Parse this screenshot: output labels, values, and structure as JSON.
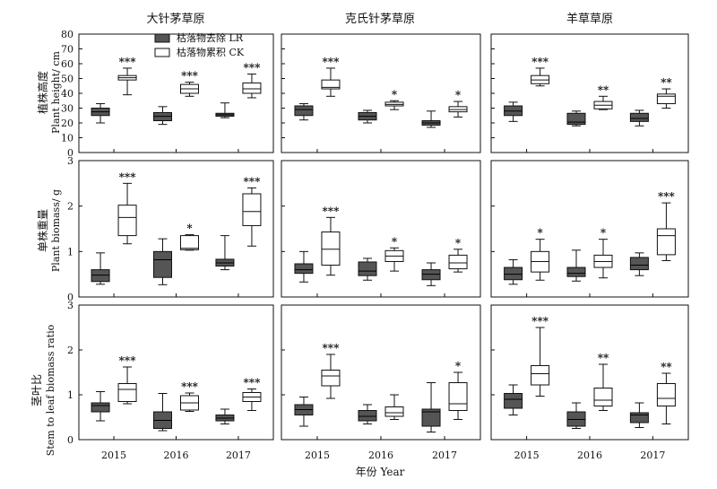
{
  "figure": {
    "xlabel": "年份 Year",
    "years": [
      "2015",
      "2016",
      "2017"
    ],
    "columns": [
      "大针茅草原",
      "克氏针茅草原",
      "羊草草原"
    ],
    "legend": [
      {
        "label": "枯落物去除 LR",
        "color": "#555555"
      },
      {
        "label": "枯落物累积 CK",
        "color": "#ffffff"
      }
    ],
    "colors": {
      "LR": "#555555",
      "CK": "#ffffff",
      "stroke": "#111111"
    }
  },
  "chart_data": [
    {
      "type": "box",
      "row": 0,
      "col": 0,
      "ylabel_cn": "植株高度",
      "ylabel_en": "Plant height/ cm",
      "ylim": [
        0,
        80
      ],
      "yticks": [
        0,
        10,
        20,
        30,
        40,
        50,
        60,
        70,
        80
      ],
      "categories": [
        "2015",
        "2016",
        "2017"
      ],
      "series": [
        {
          "key": "LR",
          "boxes": [
            [
              20,
              25,
              27.5,
              30,
              33
            ],
            [
              19,
              21.5,
              24.5,
              27,
              31
            ],
            [
              23.5,
              24.5,
              25.5,
              26.5,
              33.5
            ]
          ]
        },
        {
          "key": "CK",
          "boxes": [
            [
              39,
              49,
              50.5,
              52,
              57
            ],
            [
              38,
              40,
              43,
              46,
              47.5
            ],
            [
              37,
              40,
              43,
              47,
              53
            ]
          ]
        }
      ],
      "annotations": [
        "***",
        "***",
        "***"
      ]
    },
    {
      "type": "box",
      "row": 0,
      "col": 1,
      "ylim": [
        0,
        80
      ],
      "yticks": [
        0,
        10,
        20,
        30,
        40,
        50,
        60,
        70,
        80
      ],
      "categories": [
        "2015",
        "2016",
        "2017"
      ],
      "series": [
        {
          "key": "LR",
          "boxes": [
            [
              22,
              25,
              29,
              31.5,
              33
            ],
            [
              20,
              22,
              24.5,
              27,
              28.5
            ],
            [
              17,
              18.5,
              20,
              21.5,
              28
            ]
          ]
        },
        {
          "key": "CK",
          "boxes": [
            [
              38,
              43,
              44,
              49,
              57
            ],
            [
              29,
              31.5,
              32.5,
              34,
              35
            ],
            [
              24,
              27.5,
              29,
              31,
              34.5
            ]
          ]
        }
      ],
      "annotations": [
        "***",
        "*",
        "*"
      ]
    },
    {
      "type": "box",
      "row": 0,
      "col": 2,
      "ylim": [
        0,
        80
      ],
      "yticks": [
        0,
        10,
        20,
        30,
        40,
        50,
        60,
        70,
        80
      ],
      "categories": [
        "2015",
        "2016",
        "2017"
      ],
      "series": [
        {
          "key": "LR",
          "boxes": [
            [
              21,
              25,
              28,
              31.5,
              34
            ],
            [
              18,
              19,
              20.5,
              26.5,
              28
            ],
            [
              18,
              21,
              23,
              26.5,
              28.5
            ]
          ]
        },
        {
          "key": "CK",
          "boxes": [
            [
              45,
              46.5,
              49,
              52,
              57
            ],
            [
              29,
              29.5,
              32,
              34.5,
              38
            ],
            [
              30,
              33,
              38,
              39.5,
              43
            ]
          ]
        }
      ],
      "annotations": [
        "***",
        "**",
        "**"
      ]
    },
    {
      "type": "box",
      "row": 1,
      "col": 0,
      "ylabel_cn": "单株重量",
      "ylabel_en": "Plant biomass/ g",
      "ylim": [
        0,
        3
      ],
      "yticks": [
        0,
        1,
        2,
        3
      ],
      "categories": [
        "2015",
        "2016",
        "2017"
      ],
      "series": [
        {
          "key": "LR",
          "boxes": [
            [
              0.28,
              0.34,
              0.48,
              0.6,
              0.97
            ],
            [
              0.27,
              0.43,
              0.82,
              1.0,
              1.28
            ],
            [
              0.6,
              0.68,
              0.75,
              0.83,
              1.35
            ]
          ]
        },
        {
          "key": "CK",
          "boxes": [
            [
              1.17,
              1.35,
              1.75,
              2.02,
              2.5
            ],
            [
              1.03,
              1.04,
              1.07,
              1.35,
              1.37
            ],
            [
              1.12,
              1.57,
              1.88,
              2.27,
              2.4
            ]
          ]
        }
      ],
      "annotations": [
        "***",
        "*",
        "***"
      ]
    },
    {
      "type": "box",
      "row": 1,
      "col": 1,
      "ylim": [
        0,
        3
      ],
      "yticks": [
        0,
        1,
        2,
        3
      ],
      "categories": [
        "2015",
        "2016",
        "2017"
      ],
      "series": [
        {
          "key": "LR",
          "boxes": [
            [
              0.33,
              0.52,
              0.6,
              0.73,
              1.0
            ],
            [
              0.37,
              0.47,
              0.57,
              0.77,
              0.85
            ],
            [
              0.25,
              0.38,
              0.5,
              0.6,
              0.75
            ]
          ]
        },
        {
          "key": "CK",
          "boxes": [
            [
              0.48,
              0.7,
              1.05,
              1.43,
              1.75
            ],
            [
              0.57,
              0.78,
              0.9,
              1.02,
              1.08
            ],
            [
              0.55,
              0.62,
              0.75,
              0.92,
              1.05
            ]
          ]
        }
      ],
      "annotations": [
        "***",
        "*",
        "*"
      ]
    },
    {
      "type": "box",
      "row": 1,
      "col": 2,
      "ylim": [
        0,
        3
      ],
      "yticks": [
        0,
        1,
        2,
        3
      ],
      "categories": [
        "2015",
        "2016",
        "2017"
      ],
      "series": [
        {
          "key": "LR",
          "boxes": [
            [
              0.28,
              0.38,
              0.5,
              0.65,
              0.82
            ],
            [
              0.35,
              0.45,
              0.52,
              0.65,
              1.03
            ],
            [
              0.47,
              0.6,
              0.7,
              0.87,
              0.97
            ]
          ]
        },
        {
          "key": "CK",
          "boxes": [
            [
              0.37,
              0.55,
              0.78,
              1.0,
              1.27
            ],
            [
              0.42,
              0.65,
              0.78,
              0.92,
              1.27
            ],
            [
              0.8,
              0.93,
              1.35,
              1.5,
              2.07
            ]
          ]
        }
      ],
      "annotations": [
        "*",
        "*",
        "***"
      ]
    },
    {
      "type": "box",
      "row": 2,
      "col": 0,
      "ylabel_cn": "茎叶比",
      "ylabel_en": "Stem to leaf biomass ratio",
      "ylim": [
        0,
        3
      ],
      "yticks": [
        0,
        1,
        2,
        3
      ],
      "categories": [
        "2015",
        "2016",
        "2017"
      ],
      "series": [
        {
          "key": "LR",
          "boxes": [
            [
              0.42,
              0.62,
              0.76,
              0.82,
              1.07
            ],
            [
              0.2,
              0.25,
              0.43,
              0.62,
              1.03
            ],
            [
              0.35,
              0.42,
              0.48,
              0.55,
              0.68
            ]
          ]
        },
        {
          "key": "CK",
          "boxes": [
            [
              0.8,
              0.85,
              1.12,
              1.25,
              1.62
            ],
            [
              0.63,
              0.66,
              0.82,
              0.98,
              1.04
            ],
            [
              0.65,
              0.85,
              0.95,
              1.05,
              1.13
            ]
          ]
        }
      ],
      "annotations": [
        "***",
        "***",
        "***"
      ]
    },
    {
      "type": "box",
      "row": 2,
      "col": 1,
      "ylim": [
        0,
        3
      ],
      "yticks": [
        0,
        1,
        2,
        3
      ],
      "categories": [
        "2015",
        "2016",
        "2017"
      ],
      "series": [
        {
          "key": "LR",
          "boxes": [
            [
              0.3,
              0.55,
              0.67,
              0.78,
              0.95
            ],
            [
              0.35,
              0.42,
              0.52,
              0.65,
              0.78
            ],
            [
              0.17,
              0.3,
              0.62,
              0.68,
              1.27
            ]
          ]
        },
        {
          "key": "CK",
          "boxes": [
            [
              0.92,
              1.2,
              1.42,
              1.55,
              1.9
            ],
            [
              0.45,
              0.52,
              0.6,
              0.73,
              1.0
            ],
            [
              0.45,
              0.65,
              0.8,
              1.27,
              1.5
            ]
          ]
        }
      ],
      "annotations": [
        "***",
        "",
        "*"
      ]
    },
    {
      "type": "box",
      "row": 2,
      "col": 2,
      "ylim": [
        0,
        3
      ],
      "yticks": [
        0,
        1,
        2,
        3
      ],
      "categories": [
        "2015",
        "2016",
        "2017"
      ],
      "series": [
        {
          "key": "LR",
          "boxes": [
            [
              0.55,
              0.7,
              0.9,
              1.03,
              1.22
            ],
            [
              0.25,
              0.3,
              0.45,
              0.62,
              0.82
            ],
            [
              0.27,
              0.38,
              0.55,
              0.6,
              0.82
            ]
          ]
        },
        {
          "key": "CK",
          "boxes": [
            [
              0.97,
              1.22,
              1.47,
              1.65,
              2.5
            ],
            [
              0.65,
              0.75,
              0.88,
              1.15,
              1.68
            ],
            [
              0.35,
              0.75,
              0.92,
              1.25,
              1.48
            ]
          ]
        }
      ],
      "annotations": [
        "***",
        "**",
        "**"
      ]
    }
  ]
}
